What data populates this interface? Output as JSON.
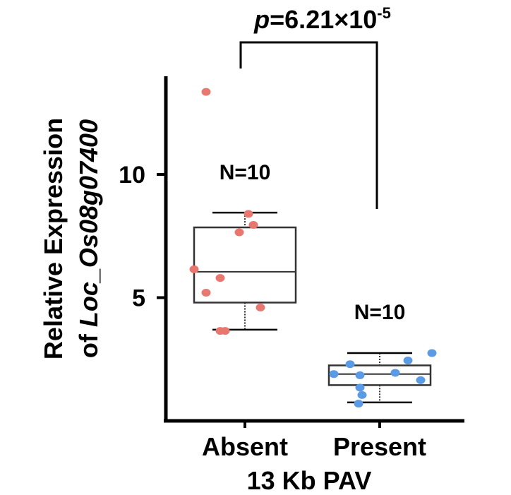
{
  "chart_data": {
    "type": "box",
    "xlabel": "13 Kb PAV",
    "ylabel_line1": "Relative Expression",
    "ylabel_line2_prefix": "of ",
    "ylabel_line2_gene": "Loc_Os08g07400",
    "ylim": [
      0,
      14
    ],
    "yticks": [
      5,
      10
    ],
    "categories": [
      "Absent",
      "Present"
    ],
    "groups": [
      {
        "category": "Absent",
        "color": "#e8786f",
        "n_label": "N=10",
        "box": {
          "min": 3.7,
          "q1": 4.8,
          "median": 6.05,
          "q3": 7.85,
          "max": 8.45
        },
        "points": [
          13.35,
          8.4,
          7.95,
          7.65,
          6.15,
          5.8,
          5.2,
          4.6,
          3.65,
          3.65
        ]
      },
      {
        "category": "Present",
        "color": "#5b9be6",
        "n_label": "N=10",
        "box": {
          "min": 0.75,
          "q1": 1.45,
          "median": 1.9,
          "q3": 2.25,
          "max": 2.75
        },
        "points": [
          2.75,
          2.45,
          2.3,
          1.95,
          1.9,
          1.85,
          1.65,
          1.35,
          1.05,
          0.7
        ]
      }
    ],
    "significance": {
      "p_italic": "p",
      "text": "=6.21×10",
      "exponent": "-5"
    }
  }
}
